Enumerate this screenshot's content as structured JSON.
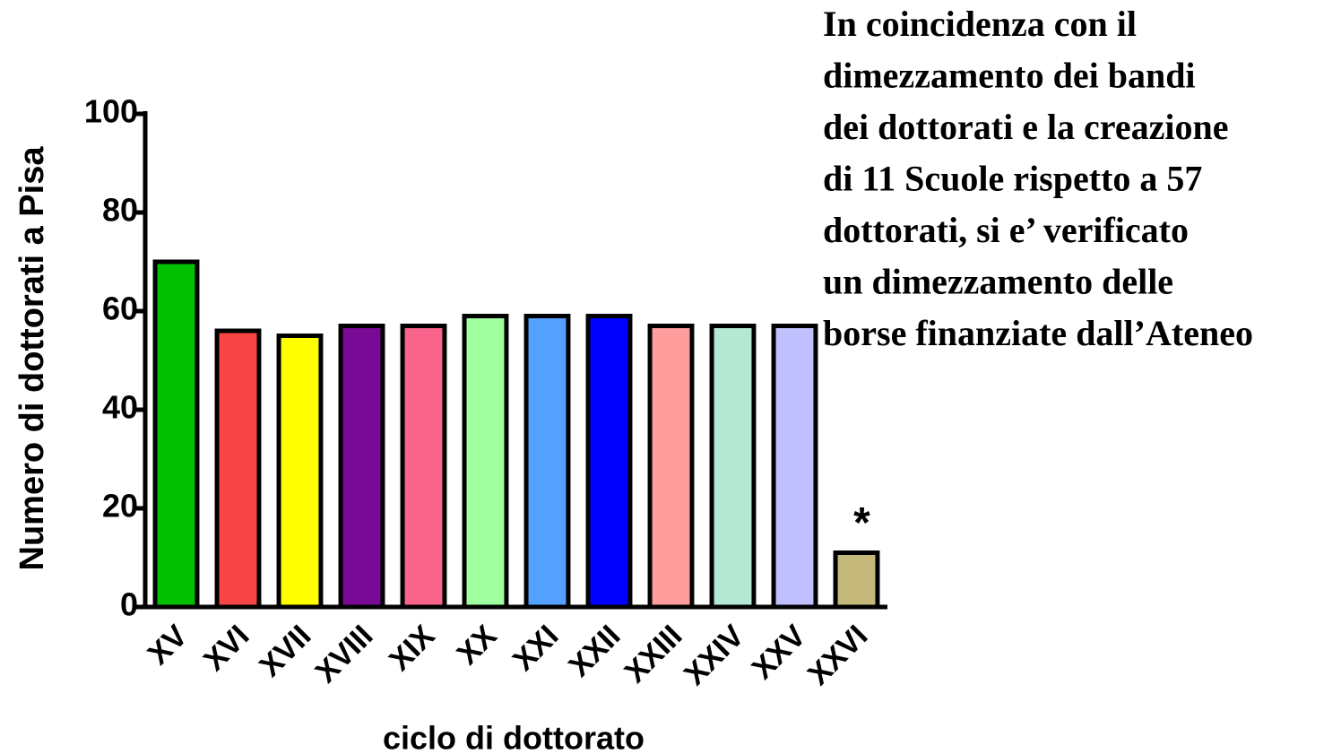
{
  "chart_data": {
    "type": "bar",
    "y_label": "Numero di dottorati a Pisa",
    "x_label": "ciclo di dottorato",
    "categories": [
      "XV",
      "XVI",
      "XVII",
      "XVIII",
      "XIX",
      "XX",
      "XXI",
      "XXII",
      "XXIII",
      "XXIV",
      "XXV",
      "XXVI"
    ],
    "values": [
      70,
      56,
      55,
      57,
      57,
      59,
      59,
      59,
      57,
      57,
      57,
      11
    ],
    "colors": [
      "#00c000",
      "#f84444",
      "#ffff00",
      "#780a96",
      "#f8648c",
      "#a0ff9e",
      "#54a0ff",
      "#0000ff",
      "#ff9c9c",
      "#b4e8d4",
      "#c0c0ff",
      "#c4b87a"
    ],
    "ylim": [
      0,
      100
    ],
    "yticks": [
      0,
      20,
      40,
      60,
      80,
      100
    ],
    "marker_annotation": {
      "text": "*",
      "category": 11
    },
    "note_lines": [
      "In coincidenza con il",
      "dimezzamento dei  bandi",
      "dei dottorati e la creazione",
      "di 11 Scuole rispetto a 57",
      "dottorati, si e’ verificato",
      "un dimezzamento delle",
      "borse finanziate dall’Ateneo"
    ]
  }
}
